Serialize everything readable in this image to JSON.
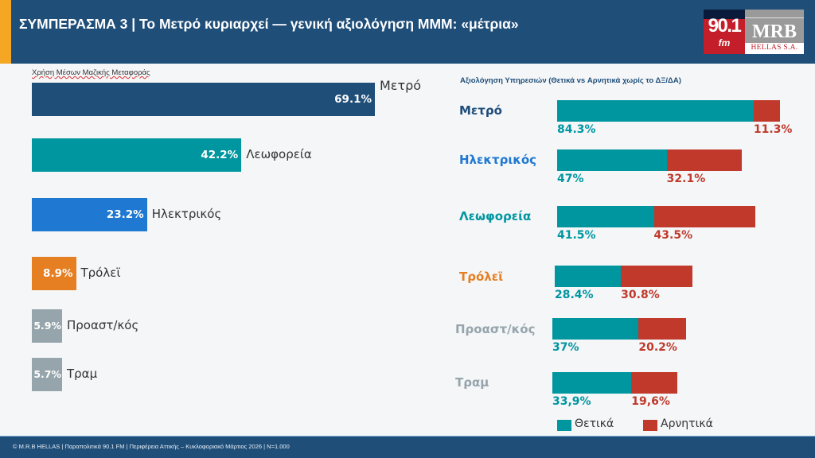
{
  "header": {
    "title": "ΣΥΜΠΕΡΑΣΜΑ 3  |  Το Μετρό κυριαρχεί — γενική αξιολόγηση ΜΜΜ: «μέτρια»",
    "accent_color": "#f5a623",
    "background_color": "#1f4e79"
  },
  "logo": {
    "radio": "90.1",
    "radio_suffix": "fm",
    "company": "MRB",
    "company_sub": "HELLAS S.A."
  },
  "footer": {
    "text": "© M.R.B HELLAS  |  Παραπολιτικά 90.1 FM  |  Περιφέρεια Αττικής – Κυκλοφοριακό Μάρτιος 2026  |  N=1.000"
  },
  "chart_data": [
    {
      "type": "bar",
      "orientation": "horizontal",
      "title": "Χρήση Μέσων Μαζικής Μεταφοράς",
      "categories": [
        "Μετρό",
        "Λεωφορεία",
        "Ηλεκτρικός",
        "Τρόλεϊ",
        "Προαστ/κός",
        "Τραμ"
      ],
      "values": [
        69.1,
        42.2,
        23.2,
        8.9,
        5.9,
        5.7
      ],
      "value_labels": [
        "69.1%",
        "42.2%",
        "23.2%",
        "8.9%",
        "5.9%",
        "5.7%"
      ],
      "colors": [
        "#1f4e79",
        "#0096a0",
        "#1f78d1",
        "#e67e22",
        "#95a5ab",
        "#95a5ab"
      ],
      "unit": "%",
      "xlabel": "",
      "ylabel": "",
      "grid": false
    },
    {
      "type": "bar",
      "orientation": "horizontal",
      "stacked": true,
      "title": "Αξιολόγηση Υπηρεσιών (Θετικά vs Αρνητικά χωρίς το ΔΞ/ΔΑ)",
      "categories": [
        "Μετρό",
        "Ηλεκτρικός",
        "Λεωφορεία",
        "Τρόλεϊ",
        "Προαστ/κός",
        "Τραμ"
      ],
      "category_colors": [
        "#1f4e79",
        "#1f78d1",
        "#0096a0",
        "#e67e22",
        "#95a5ab",
        "#95a5ab"
      ],
      "series": [
        {
          "name": "Θετικά",
          "color": "#0096a0",
          "values": [
            84.3,
            47,
            41.5,
            28.4,
            37,
            33.9
          ],
          "value_labels": [
            "84.3%",
            "47%",
            "41.5%",
            "28.4%",
            "37%",
            "33,9%"
          ]
        },
        {
          "name": "Αρνητικά",
          "color": "#c0392b",
          "values": [
            11.3,
            32.1,
            43.5,
            30.8,
            20.2,
            19.6
          ],
          "value_labels": [
            "11.3%",
            "32.1%",
            "43.5%",
            "30.8%",
            "20.2%",
            "19,6%"
          ]
        }
      ],
      "legend": "bottom",
      "unit": "%",
      "grid": false
    }
  ]
}
